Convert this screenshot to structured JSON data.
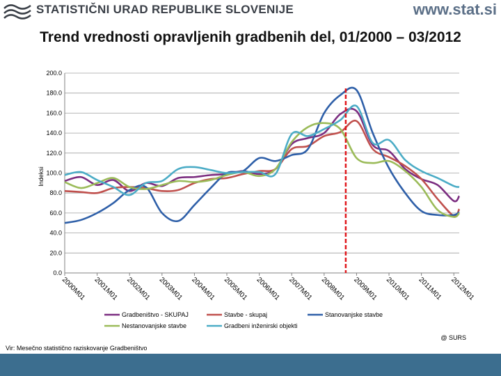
{
  "header": {
    "org_name": "STATISTIČNI URAD REPUBLIKE SLOVENIJE",
    "site": "www.stat.si",
    "logo_icon": "surs-logo-icon"
  },
  "colors": {
    "gradbenistvo": "#7b2d80",
    "stavbe": "#c0504d",
    "stanovanjske": "#2e5fa8",
    "nestanovanjske": "#9bbb59",
    "inzenirski": "#4bacc6",
    "marker": "#e0161b",
    "footer": "#3c6e8f"
  },
  "chart_data": {
    "type": "line",
    "title": "Trend vrednosti opravljenih gradbenih del, 01/2000 – 03/2012",
    "ylabel": "Indeksi",
    "xlabel": "",
    "ylim": [
      0,
      200
    ],
    "yticks": [
      "0.0",
      "20.0",
      "40.0",
      "60.0",
      "80.0",
      "100.0",
      "120.0",
      "140.0",
      "160.0",
      "180.0",
      "200.0"
    ],
    "xticks": [
      "2000M01",
      "2001M01",
      "2002M01",
      "2003M01",
      "2004M01",
      "2005M01",
      "2006M01",
      "2007M01",
      "2008M01",
      "2009M01",
      "2010M01",
      "2011M01",
      "2012M01"
    ],
    "marker_at": "2008M09",
    "grid": true,
    "legend_position": "bottom",
    "series": [
      {
        "name": "Gradbeništvo - SKUPAJ",
        "color_key": "gradbenistvo",
        "x": [
          "2000M01",
          "2000M07",
          "2001M01",
          "2001M07",
          "2002M01",
          "2002M07",
          "2003M01",
          "2003M07",
          "2004M01",
          "2004M07",
          "2005M01",
          "2005M07",
          "2006M01",
          "2006M07",
          "2007M01",
          "2007M07",
          "2008M01",
          "2008M07",
          "2009M01",
          "2009M07",
          "2010M01",
          "2010M07",
          "2011M01",
          "2011M07",
          "2012M01",
          "2012M03"
        ],
        "y": [
          92,
          96,
          88,
          93,
          82,
          90,
          87,
          95,
          96,
          98,
          99,
          102,
          99,
          104,
          129,
          135,
          140,
          159,
          162,
          128,
          122,
          104,
          94,
          88,
          72,
          77
        ]
      },
      {
        "name": "Stavbe - skupaj",
        "color_key": "stavbe",
        "x": [
          "2000M01",
          "2000M07",
          "2001M01",
          "2001M07",
          "2002M01",
          "2002M07",
          "2003M01",
          "2003M07",
          "2004M01",
          "2004M07",
          "2005M01",
          "2005M07",
          "2006M01",
          "2006M07",
          "2007M01",
          "2007M07",
          "2008M01",
          "2008M07",
          "2009M01",
          "2009M07",
          "2010M01",
          "2010M07",
          "2011M01",
          "2011M07",
          "2012M01",
          "2012M03"
        ],
        "y": [
          82,
          81,
          80,
          85,
          86,
          85,
          82,
          83,
          90,
          94,
          95,
          99,
          102,
          104,
          124,
          127,
          137,
          141,
          152,
          124,
          116,
          107,
          94,
          74,
          57,
          64
        ]
      },
      {
        "name": "Stanovanjske stavbe",
        "color_key": "stanovanjske",
        "x": [
          "2000M01",
          "2000M07",
          "2001M01",
          "2001M07",
          "2002M01",
          "2002M07",
          "2003M01",
          "2003M07",
          "2004M01",
          "2004M07",
          "2005M01",
          "2005M07",
          "2006M01",
          "2006M07",
          "2007M01",
          "2007M07",
          "2008M01",
          "2008M07",
          "2009M01",
          "2009M07",
          "2010M01",
          "2010M07",
          "2011M01",
          "2011M07",
          "2012M01",
          "2012M03"
        ],
        "y": [
          50,
          53,
          60,
          70,
          83,
          86,
          60,
          52,
          68,
          85,
          100,
          102,
          115,
          112,
          118,
          124,
          160,
          178,
          183,
          140,
          105,
          80,
          62,
          58,
          58,
          61
        ]
      },
      {
        "name": "Nestanovanjske stavbe",
        "color_key": "nestanovanjske",
        "x": [
          "2000M01",
          "2000M07",
          "2001M01",
          "2001M07",
          "2002M01",
          "2002M07",
          "2003M01",
          "2003M07",
          "2004M01",
          "2004M07",
          "2005M01",
          "2005M07",
          "2006M01",
          "2006M07",
          "2007M01",
          "2007M07",
          "2008M01",
          "2008M07",
          "2009M01",
          "2009M07",
          "2010M01",
          "2010M07",
          "2011M01",
          "2011M07",
          "2012M01",
          "2012M03"
        ],
        "y": [
          91,
          85,
          90,
          95,
          86,
          84,
          88,
          92,
          91,
          93,
          98,
          101,
          97,
          104,
          131,
          146,
          150,
          144,
          115,
          110,
          112,
          102,
          86,
          63,
          56,
          60
        ]
      },
      {
        "name": "Gradbeni inženirski objekti",
        "color_key": "inzenirski",
        "x": [
          "2000M01",
          "2000M07",
          "2001M01",
          "2001M07",
          "2002M01",
          "2002M07",
          "2003M01",
          "2003M07",
          "2004M01",
          "2004M07",
          "2005M01",
          "2005M07",
          "2006M01",
          "2006M07",
          "2007M01",
          "2007M07",
          "2008M01",
          "2008M07",
          "2009M01",
          "2009M07",
          "2010M01",
          "2010M07",
          "2011M01",
          "2011M07",
          "2012M01",
          "2012M03"
        ],
        "y": [
          98,
          101,
          93,
          86,
          78,
          90,
          92,
          104,
          106,
          103,
          100,
          101,
          101,
          99,
          139,
          137,
          144,
          153,
          167,
          130,
          133,
          113,
          102,
          95,
          87,
          86
        ]
      }
    ]
  },
  "credit": "@ SURS",
  "source": "Vir: Mesečno statistično raziskovanje Gradbeništvo"
}
